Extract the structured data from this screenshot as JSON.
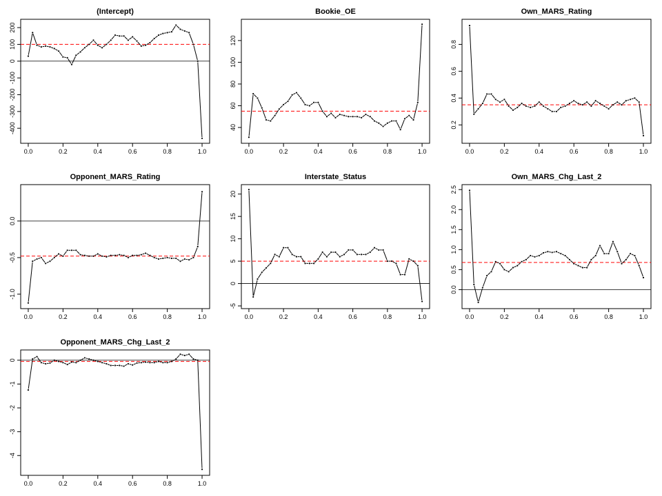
{
  "chart_data": [
    {
      "type": "line",
      "title": "(Intercept)",
      "xlim": [
        0,
        1
      ],
      "ylim": [
        -460,
        220
      ],
      "x_ticks": [
        0.0,
        0.2,
        0.4,
        0.6,
        0.8,
        1.0
      ],
      "x_tick_labels": [
        "0.0",
        "0.2",
        "0.4",
        "0.6",
        "0.8",
        "1.0"
      ],
      "y_ticks": [
        -400,
        -300,
        -200,
        -100,
        0,
        100,
        200
      ],
      "y_tick_labels": [
        "-400",
        "-300",
        "-200",
        "-100",
        "0",
        "100",
        "200"
      ],
      "mean_line": 100,
      "zero_line": 0,
      "x": [
        0.0,
        0.025,
        0.05,
        0.075,
        0.1,
        0.125,
        0.15,
        0.175,
        0.2,
        0.225,
        0.25,
        0.275,
        0.3,
        0.325,
        0.35,
        0.375,
        0.4,
        0.425,
        0.45,
        0.475,
        0.5,
        0.525,
        0.55,
        0.575,
        0.6,
        0.625,
        0.65,
        0.675,
        0.7,
        0.725,
        0.75,
        0.775,
        0.8,
        0.825,
        0.85,
        0.875,
        0.9,
        0.925,
        0.95,
        0.975,
        1.0
      ],
      "y": [
        30,
        170,
        95,
        85,
        90,
        85,
        75,
        60,
        25,
        20,
        -20,
        35,
        55,
        80,
        100,
        125,
        95,
        80,
        100,
        125,
        155,
        150,
        150,
        125,
        145,
        120,
        90,
        95,
        110,
        135,
        155,
        165,
        170,
        175,
        215,
        190,
        180,
        170,
        100,
        0,
        -460
      ]
    },
    {
      "type": "line",
      "title": "Bookie_OE",
      "xlim": [
        0,
        1
      ],
      "ylim": [
        30,
        135
      ],
      "x_ticks": [
        0.0,
        0.2,
        0.4,
        0.6,
        0.8,
        1.0
      ],
      "x_tick_labels": [
        "0.0",
        "0.2",
        "0.4",
        "0.6",
        "0.8",
        "1.0"
      ],
      "y_ticks": [
        40,
        60,
        80,
        100,
        120
      ],
      "y_tick_labels": [
        "40",
        "60",
        "80",
        "100",
        "120"
      ],
      "mean_line": 55,
      "x": [
        0.0,
        0.025,
        0.05,
        0.075,
        0.1,
        0.125,
        0.15,
        0.175,
        0.2,
        0.225,
        0.25,
        0.275,
        0.3,
        0.325,
        0.35,
        0.375,
        0.4,
        0.425,
        0.45,
        0.475,
        0.5,
        0.525,
        0.55,
        0.575,
        0.6,
        0.625,
        0.65,
        0.675,
        0.7,
        0.725,
        0.75,
        0.775,
        0.8,
        0.825,
        0.85,
        0.875,
        0.9,
        0.925,
        0.95,
        0.975,
        1.0
      ],
      "y": [
        31,
        71,
        67,
        58,
        47,
        46,
        51,
        57,
        61,
        64,
        70,
        72,
        67,
        61,
        60,
        63,
        63,
        55,
        50,
        53,
        49,
        52,
        51,
        50,
        50,
        50,
        49,
        52,
        50,
        46,
        44,
        41,
        44,
        46,
        46,
        38,
        48,
        51,
        47,
        63,
        135
      ]
    },
    {
      "type": "line",
      "title": "Own_MARS_Rating",
      "xlim": [
        0,
        1
      ],
      "ylim": [
        0.1,
        0.95
      ],
      "x_ticks": [
        0.0,
        0.2,
        0.4,
        0.6,
        0.8,
        1.0
      ],
      "x_tick_labels": [
        "0.0",
        "0.2",
        "0.4",
        "0.6",
        "0.8",
        "1.0"
      ],
      "y_ticks": [
        0.2,
        0.4,
        0.6,
        0.8
      ],
      "y_tick_labels": [
        "0.2",
        "0.4",
        "0.6",
        "0.8"
      ],
      "mean_line": 0.35,
      "x": [
        0.0,
        0.025,
        0.05,
        0.075,
        0.1,
        0.125,
        0.15,
        0.175,
        0.2,
        0.225,
        0.25,
        0.275,
        0.3,
        0.325,
        0.35,
        0.375,
        0.4,
        0.425,
        0.45,
        0.475,
        0.5,
        0.525,
        0.55,
        0.575,
        0.6,
        0.625,
        0.65,
        0.675,
        0.7,
        0.725,
        0.75,
        0.775,
        0.8,
        0.825,
        0.85,
        0.875,
        0.9,
        0.925,
        0.95,
        0.975,
        1.0
      ],
      "y": [
        0.94,
        0.28,
        0.32,
        0.36,
        0.43,
        0.43,
        0.39,
        0.37,
        0.39,
        0.34,
        0.31,
        0.33,
        0.36,
        0.34,
        0.33,
        0.34,
        0.37,
        0.34,
        0.32,
        0.3,
        0.3,
        0.33,
        0.34,
        0.36,
        0.38,
        0.36,
        0.35,
        0.37,
        0.34,
        0.38,
        0.36,
        0.34,
        0.32,
        0.35,
        0.37,
        0.35,
        0.38,
        0.39,
        0.4,
        0.37,
        0.12
      ]
    },
    {
      "type": "line",
      "title": "Opponent_MARS_Rating",
      "xlim": [
        0,
        1
      ],
      "ylim": [
        -1.13,
        0.43
      ],
      "x_ticks": [
        0.0,
        0.2,
        0.4,
        0.6,
        0.8,
        1.0
      ],
      "x_tick_labels": [
        "0.0",
        "0.2",
        "0.4",
        "0.6",
        "0.8",
        "1.0"
      ],
      "y_ticks": [
        -1.0,
        -0.5,
        0.0
      ],
      "y_tick_labels": [
        "-1.0",
        "-0.5",
        "0.0"
      ],
      "mean_line": -0.48,
      "zero_line": 0,
      "x": [
        0.0,
        0.025,
        0.05,
        0.075,
        0.1,
        0.125,
        0.15,
        0.175,
        0.2,
        0.225,
        0.25,
        0.275,
        0.3,
        0.325,
        0.35,
        0.375,
        0.4,
        0.425,
        0.45,
        0.475,
        0.5,
        0.525,
        0.55,
        0.575,
        0.6,
        0.625,
        0.65,
        0.675,
        0.7,
        0.725,
        0.75,
        0.775,
        0.8,
        0.825,
        0.85,
        0.875,
        0.9,
        0.925,
        0.95,
        0.975,
        1.0
      ],
      "y": [
        -1.12,
        -0.55,
        -0.52,
        -0.5,
        -0.58,
        -0.55,
        -0.5,
        -0.45,
        -0.48,
        -0.4,
        -0.4,
        -0.4,
        -0.46,
        -0.47,
        -0.48,
        -0.48,
        -0.45,
        -0.48,
        -0.49,
        -0.47,
        -0.47,
        -0.46,
        -0.47,
        -0.5,
        -0.47,
        -0.47,
        -0.46,
        -0.44,
        -0.47,
        -0.5,
        -0.52,
        -0.51,
        -0.5,
        -0.51,
        -0.51,
        -0.55,
        -0.52,
        -0.53,
        -0.5,
        -0.35,
        0.4
      ]
    },
    {
      "type": "line",
      "title": "Interstate_Status",
      "xlim": [
        0,
        1
      ],
      "ylim": [
        -4.5,
        21
      ],
      "x_ticks": [
        0.0,
        0.2,
        0.4,
        0.6,
        0.8,
        1.0
      ],
      "x_tick_labels": [
        "0.0",
        "0.2",
        "0.4",
        "0.6",
        "0.8",
        "1.0"
      ],
      "y_ticks": [
        -5,
        0,
        5,
        10,
        15,
        20
      ],
      "y_tick_labels": [
        "-5",
        "0",
        "5",
        "10",
        "15",
        "20"
      ],
      "mean_line": 5,
      "zero_line": 0,
      "x": [
        0.0,
        0.025,
        0.05,
        0.075,
        0.1,
        0.125,
        0.15,
        0.175,
        0.2,
        0.225,
        0.25,
        0.275,
        0.3,
        0.325,
        0.35,
        0.375,
        0.4,
        0.425,
        0.45,
        0.475,
        0.5,
        0.525,
        0.55,
        0.575,
        0.6,
        0.625,
        0.65,
        0.675,
        0.7,
        0.725,
        0.75,
        0.775,
        0.8,
        0.825,
        0.85,
        0.875,
        0.9,
        0.925,
        0.95,
        0.975,
        1.0
      ],
      "y": [
        21,
        -3,
        1,
        2.5,
        3.5,
        4.5,
        6.5,
        6,
        8,
        8,
        6.5,
        6,
        6,
        4.5,
        4.5,
        4.5,
        5.5,
        7,
        6,
        7,
        7,
        6,
        6.5,
        7.5,
        7.5,
        6.5,
        6.5,
        6.5,
        7,
        8,
        7.5,
        7.5,
        5,
        5,
        4.5,
        2,
        2,
        5.5,
        5,
        4,
        -4
      ]
    },
    {
      "type": "line",
      "title": "Own_MARS_Chg_Last_2",
      "xlim": [
        0,
        1
      ],
      "ylim": [
        -0.35,
        2.5
      ],
      "x_ticks": [
        0.0,
        0.2,
        0.4,
        0.6,
        0.8,
        1.0
      ],
      "x_tick_labels": [
        "0.0",
        "0.2",
        "0.4",
        "0.6",
        "0.8",
        "1.0"
      ],
      "y_ticks": [
        0.0,
        0.5,
        1.0,
        1.5,
        2.0,
        2.5
      ],
      "y_tick_labels": [
        "0.0",
        "0.5",
        "1.0",
        "1.5",
        "2.0",
        "2.5"
      ],
      "mean_line": 0.68,
      "zero_line": 0,
      "x": [
        0.0,
        0.025,
        0.05,
        0.075,
        0.1,
        0.125,
        0.15,
        0.175,
        0.2,
        0.225,
        0.25,
        0.275,
        0.3,
        0.325,
        0.35,
        0.375,
        0.4,
        0.425,
        0.45,
        0.475,
        0.5,
        0.525,
        0.55,
        0.575,
        0.6,
        0.625,
        0.65,
        0.675,
        0.7,
        0.725,
        0.75,
        0.775,
        0.8,
        0.825,
        0.85,
        0.875,
        0.9,
        0.925,
        0.95,
        0.975,
        1.0
      ],
      "y": [
        2.48,
        0.13,
        -0.32,
        0.05,
        0.35,
        0.45,
        0.7,
        0.65,
        0.5,
        0.45,
        0.55,
        0.6,
        0.7,
        0.75,
        0.85,
        0.82,
        0.85,
        0.92,
        0.95,
        0.93,
        0.95,
        0.9,
        0.85,
        0.75,
        0.65,
        0.6,
        0.55,
        0.55,
        0.75,
        0.85,
        1.1,
        0.9,
        0.9,
        1.2,
        0.95,
        0.65,
        0.75,
        0.9,
        0.85,
        0.6,
        0.3
      ]
    },
    {
      "type": "line",
      "title": "Opponent_MARS_Chg_Last_2",
      "xlim": [
        0,
        1
      ],
      "ylim": [
        -4.62,
        0.22
      ],
      "x_ticks": [
        0.0,
        0.2,
        0.4,
        0.6,
        0.8,
        1.0
      ],
      "x_tick_labels": [
        "0.0",
        "0.2",
        "0.4",
        "0.6",
        "0.8",
        "1.0"
      ],
      "y_ticks": [
        -4,
        -3,
        -2,
        -1,
        0
      ],
      "y_tick_labels": [
        "-4",
        "-3",
        "-2",
        "-1",
        "0"
      ],
      "mean_line": -0.05,
      "zero_line": 0,
      "x": [
        0.0,
        0.025,
        0.05,
        0.075,
        0.1,
        0.125,
        0.15,
        0.175,
        0.2,
        0.225,
        0.25,
        0.275,
        0.3,
        0.325,
        0.35,
        0.375,
        0.4,
        0.425,
        0.45,
        0.475,
        0.5,
        0.525,
        0.55,
        0.575,
        0.6,
        0.625,
        0.65,
        0.675,
        0.7,
        0.725,
        0.75,
        0.775,
        0.8,
        0.825,
        0.85,
        0.875,
        0.9,
        0.925,
        0.95,
        0.975,
        1.0
      ],
      "y": [
        -1.25,
        0.05,
        0.15,
        -0.1,
        -0.15,
        -0.12,
        0.0,
        -0.05,
        -0.1,
        -0.18,
        -0.08,
        -0.1,
        0.0,
        0.1,
        0.05,
        0.0,
        -0.05,
        -0.1,
        -0.15,
        -0.22,
        -0.22,
        -0.22,
        -0.25,
        -0.15,
        -0.2,
        -0.12,
        -0.1,
        -0.08,
        -0.1,
        -0.1,
        -0.05,
        -0.1,
        -0.1,
        -0.05,
        0.05,
        0.25,
        0.2,
        0.25,
        0.05,
        0.0,
        -4.58
      ]
    }
  ]
}
